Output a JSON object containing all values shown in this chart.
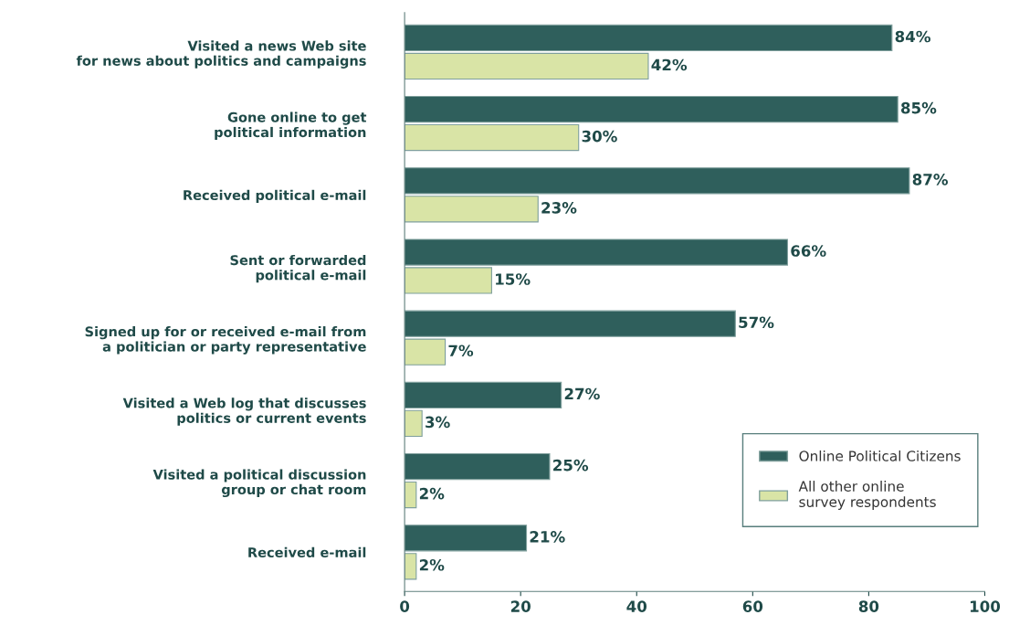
{
  "chart_data": {
    "type": "bar",
    "orientation": "horizontal",
    "categories": [
      "Visited a news Web site\nfor news about politics and campaigns",
      "Gone online to get\npolitical information",
      "Received political e-mail",
      "Sent or forwarded\npolitical e-mail",
      "Signed up for or received e-mail from\na politician or party representative",
      "Visited a Web log that discusses\npolitics or current events",
      "Visited a political discussion\ngroup or chat room",
      "Received e-mail"
    ],
    "series": [
      {
        "name": "Online Political Citizens",
        "color": "#2f5f5c",
        "values": [
          84,
          85,
          87,
          66,
          57,
          27,
          25,
          21
        ],
        "value_labels": [
          "84%",
          "85%",
          "87%",
          "66%",
          "57%",
          "27%",
          "25%",
          "21%"
        ]
      },
      {
        "name": "All other online\nsurvey respondents",
        "color": "#d9e4a6",
        "values": [
          42,
          30,
          23,
          15,
          7,
          3,
          2,
          2
        ],
        "value_labels": [
          "42%",
          "30%",
          "23%",
          "15%",
          "7%",
          "3%",
          "2%",
          "2%"
        ]
      }
    ],
    "xlim": [
      0,
      100
    ],
    "xticks": [
      0,
      20,
      40,
      60,
      80,
      100
    ],
    "grid": false,
    "legend": "bottom right"
  }
}
